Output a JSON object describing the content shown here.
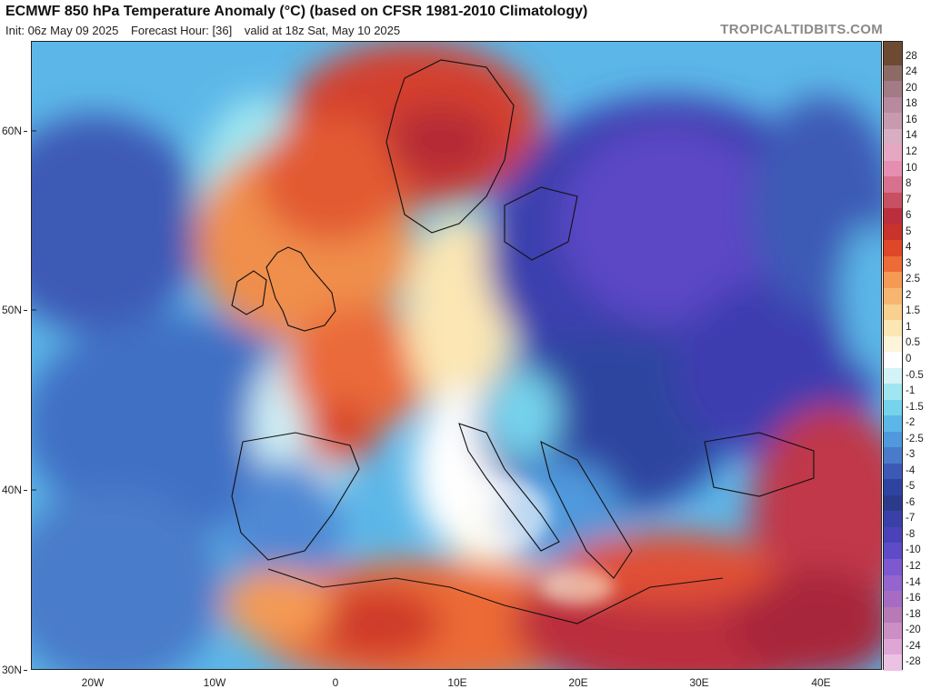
{
  "header": {
    "title": "ECMWF 850 hPa Temperature Anomaly (°C) (based on CFSR 1981-2010 Climatology)",
    "init": "Init: 06z May 09 2025",
    "forecast_hour": "Forecast Hour: [36]",
    "valid": "valid at 18z Sat, May 10 2025",
    "site": "TROPICALTIDBITS.COM"
  },
  "map": {
    "projection": "lat-lon",
    "lon_range": [
      -25,
      45
    ],
    "lat_range": [
      30,
      65
    ],
    "lat_labels": [
      "60N",
      "50N",
      "40N",
      "30N"
    ],
    "lon_labels": [
      "20W",
      "10W",
      "0",
      "10E",
      "20E",
      "30E",
      "40E"
    ],
    "highlights": [
      {
        "region": "Scandinavia / British Isles / France",
        "anomaly": "warm",
        "color": "#c93b2c"
      },
      {
        "region": "Eastern Europe / Balkans / Poland",
        "anomaly": "cold",
        "color": "#3a3fae"
      },
      {
        "region": "Iberia / Atlantic",
        "anomaly": "cool",
        "color": "#3b74c4"
      },
      {
        "region": "North Africa / E. Mediterranean / Middle East",
        "anomaly": "warm",
        "color": "#b8303f"
      }
    ]
  },
  "colorbar": {
    "labels": [
      "28",
      "24",
      "20",
      "18",
      "16",
      "14",
      "12",
      "10",
      "8",
      "7",
      "6",
      "5",
      "4",
      "3",
      "2.5",
      "2",
      "1.5",
      "1",
      "0.5",
      "0",
      "-0.5",
      "-1",
      "-1.5",
      "-2",
      "-2.5",
      "-3",
      "-4",
      "-5",
      "-6",
      "-7",
      "-8",
      "-10",
      "-12",
      "-14",
      "-16",
      "-18",
      "-20",
      "-24",
      "-28"
    ],
    "colors": [
      "#6e4a33",
      "#8c6b66",
      "#a27b86",
      "#b78a9e",
      "#c79aad",
      "#d9adc2",
      "#e6a7c2",
      "#e58eb1",
      "#d8718e",
      "#c94f63",
      "#bb2f3d",
      "#c8332c",
      "#de4728",
      "#ec6b36",
      "#f49a55",
      "#f6b671",
      "#f8d08f",
      "#fbe6b4",
      "#fdf5da",
      "#ffffff",
      "#d3f3f7",
      "#9fe6f0",
      "#76d3ec",
      "#5cb7e8",
      "#4f99dc",
      "#4a7bca",
      "#3c5ab5",
      "#2f44a0",
      "#2c3a8c",
      "#3b40a8",
      "#4a42b8",
      "#5e4bc8",
      "#7e58cf",
      "#9565cf",
      "#a66cc4",
      "#b77ab7",
      "#cc8fc4",
      "#dea6d6",
      "#ecc2e4"
    ]
  }
}
